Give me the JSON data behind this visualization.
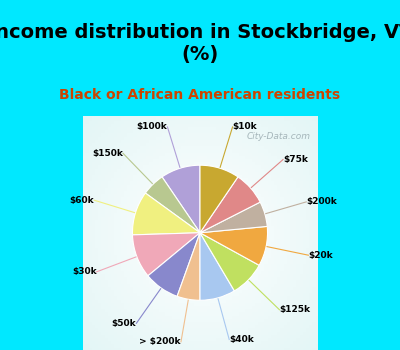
{
  "title": "Income distribution in Stockbridge, VT\n(%)",
  "subtitle": "Black or African American residents",
  "labels": [
    "$100k",
    "$150k",
    "$60k",
    "$30k",
    "$50k",
    "> $200k",
    "$40k",
    "$125k",
    "$20k",
    "$200k",
    "$75k",
    "$10k"
  ],
  "sizes": [
    9.5,
    5.5,
    10.5,
    10.5,
    8.5,
    5.5,
    8.5,
    8.5,
    9.5,
    6.0,
    8.0,
    9.5
  ],
  "colors": [
    "#b0a0d8",
    "#b8c890",
    "#f0f080",
    "#f0a8b8",
    "#8888cc",
    "#f0c090",
    "#a8c8f0",
    "#c0e060",
    "#f0a840",
    "#c0b0a0",
    "#e08888",
    "#c8a830"
  ],
  "background_cyan": "#00e8ff",
  "background_chart": "#d8f0e8",
  "startangle": 90,
  "title_fontsize": 14,
  "subtitle_fontsize": 10,
  "subtitle_color": "#cc4400",
  "watermark": "City-Data.com"
}
